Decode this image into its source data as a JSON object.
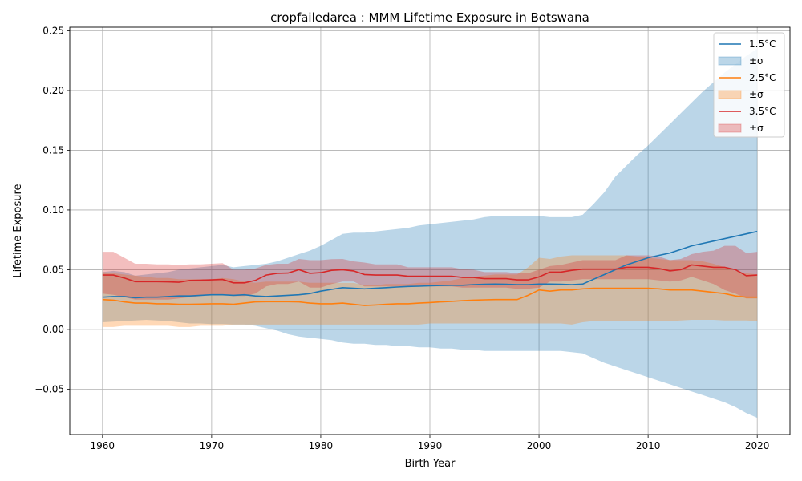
{
  "chart_data": {
    "type": "line",
    "title": "cropfailedarea : MMM Lifetime Exposure in Botswana",
    "xlabel": "Birth Year",
    "ylabel": "Lifetime Exposure",
    "xlim": [
      1957,
      2023
    ],
    "ylim": [
      -0.088,
      0.253
    ],
    "xticks": [
      1960,
      1970,
      1980,
      1990,
      2000,
      2010,
      2020
    ],
    "xtick_labels": [
      "1960",
      "1970",
      "1980",
      "1990",
      "2000",
      "2010",
      "2020"
    ],
    "yticks": [
      -0.05,
      0.0,
      0.05,
      0.1,
      0.15,
      0.2,
      0.25
    ],
    "ytick_labels": [
      "−0.05",
      "0.00",
      "0.05",
      "0.10",
      "0.15",
      "0.20",
      "0.25"
    ],
    "grid": true,
    "legend_position": "top-right",
    "x": [
      1960,
      1961,
      1962,
      1963,
      1964,
      1965,
      1966,
      1967,
      1968,
      1969,
      1970,
      1971,
      1972,
      1973,
      1974,
      1975,
      1976,
      1977,
      1978,
      1979,
      1980,
      1981,
      1982,
      1983,
      1984,
      1985,
      1986,
      1987,
      1988,
      1989,
      1990,
      1991,
      1992,
      1993,
      1994,
      1995,
      1996,
      1997,
      1998,
      1999,
      2000,
      2001,
      2002,
      2003,
      2004,
      2005,
      2006,
      2007,
      2008,
      2009,
      2010,
      2011,
      2012,
      2013,
      2014,
      2015,
      2016,
      2017,
      2018,
      2019,
      2020
    ],
    "series": [
      {
        "name": "1.5°C",
        "band_label": "±σ",
        "color": "#1f77b4",
        "band_color": "#1f77b4",
        "mean": [
          0.027,
          0.0275,
          0.0275,
          0.0265,
          0.027,
          0.027,
          0.0275,
          0.028,
          0.028,
          0.0285,
          0.029,
          0.029,
          0.0285,
          0.029,
          0.028,
          0.0275,
          0.028,
          0.0285,
          0.029,
          0.03,
          0.032,
          0.0335,
          0.035,
          0.0345,
          0.034,
          0.0345,
          0.035,
          0.0355,
          0.036,
          0.0362,
          0.0365,
          0.0368,
          0.037,
          0.037,
          0.0375,
          0.0378,
          0.038,
          0.0378,
          0.0375,
          0.0375,
          0.038,
          0.038,
          0.0378,
          0.0375,
          0.038,
          0.042,
          0.046,
          0.05,
          0.054,
          0.057,
          0.06,
          0.062,
          0.064,
          0.067,
          0.07,
          0.072,
          0.074,
          0.076,
          0.078,
          0.08,
          0.082
        ],
        "lower": [
          0.006,
          0.0065,
          0.007,
          0.0075,
          0.008,
          0.0075,
          0.007,
          0.006,
          0.005,
          0.005,
          0.0045,
          0.0045,
          0.004,
          0.004,
          0.003,
          0.001,
          -0.001,
          -0.004,
          -0.006,
          -0.007,
          -0.008,
          -0.009,
          -0.011,
          -0.012,
          -0.012,
          -0.013,
          -0.013,
          -0.014,
          -0.014,
          -0.015,
          -0.015,
          -0.016,
          -0.016,
          -0.017,
          -0.017,
          -0.018,
          -0.018,
          -0.018,
          -0.018,
          -0.018,
          -0.018,
          -0.018,
          -0.018,
          -0.019,
          -0.02,
          -0.024,
          -0.028,
          -0.031,
          -0.034,
          -0.037,
          -0.04,
          -0.043,
          -0.046,
          -0.049,
          -0.052,
          -0.055,
          -0.058,
          -0.061,
          -0.065,
          -0.07,
          -0.074
        ],
        "upper": [
          0.048,
          0.049,
          0.048,
          0.045,
          0.046,
          0.047,
          0.048,
          0.05,
          0.051,
          0.052,
          0.053,
          0.054,
          0.052,
          0.053,
          0.054,
          0.055,
          0.057,
          0.06,
          0.063,
          0.066,
          0.07,
          0.075,
          0.08,
          0.081,
          0.081,
          0.082,
          0.083,
          0.084,
          0.085,
          0.087,
          0.088,
          0.089,
          0.09,
          0.091,
          0.092,
          0.094,
          0.095,
          0.095,
          0.095,
          0.095,
          0.095,
          0.094,
          0.094,
          0.094,
          0.096,
          0.105,
          0.115,
          0.128,
          0.137,
          0.146,
          0.154,
          0.163,
          0.172,
          0.181,
          0.19,
          0.199,
          0.207,
          0.215,
          0.222,
          0.229,
          0.235
        ]
      },
      {
        "name": "2.5°C",
        "band_label": "±σ",
        "color": "#ff7f0e",
        "band_color": "#ff7f0e",
        "mean": [
          0.025,
          0.0245,
          0.023,
          0.022,
          0.022,
          0.0215,
          0.0215,
          0.021,
          0.021,
          0.0212,
          0.0215,
          0.0215,
          0.021,
          0.022,
          0.023,
          0.0232,
          0.0232,
          0.0232,
          0.023,
          0.022,
          0.0215,
          0.0215,
          0.022,
          0.021,
          0.02,
          0.0205,
          0.021,
          0.0215,
          0.0215,
          0.022,
          0.0225,
          0.023,
          0.0235,
          0.024,
          0.0245,
          0.0248,
          0.025,
          0.025,
          0.025,
          0.0285,
          0.033,
          0.032,
          0.033,
          0.033,
          0.034,
          0.0345,
          0.0345,
          0.0345,
          0.0345,
          0.0345,
          0.0345,
          0.034,
          0.033,
          0.033,
          0.033,
          0.032,
          0.031,
          0.03,
          0.028,
          0.027,
          0.027
        ],
        "lower": [
          0.002,
          0.002,
          0.003,
          0.003,
          0.003,
          0.003,
          0.003,
          0.002,
          0.002,
          0.003,
          0.003,
          0.003,
          0.004,
          0.004,
          0.004,
          0.004,
          0.004,
          0.004,
          0.004,
          0.004,
          0.004,
          0.004,
          0.004,
          0.004,
          0.004,
          0.004,
          0.004,
          0.004,
          0.004,
          0.004,
          0.005,
          0.005,
          0.005,
          0.005,
          0.005,
          0.005,
          0.005,
          0.005,
          0.005,
          0.005,
          0.005,
          0.005,
          0.005,
          0.004,
          0.006,
          0.007,
          0.007,
          0.007,
          0.007,
          0.007,
          0.007,
          0.007,
          0.007,
          0.0075,
          0.008,
          0.008,
          0.008,
          0.0075,
          0.0075,
          0.0075,
          0.007
        ],
        "upper": [
          0.048,
          0.047,
          0.046,
          0.045,
          0.044,
          0.043,
          0.043,
          0.042,
          0.042,
          0.042,
          0.042,
          0.043,
          0.042,
          0.04,
          0.039,
          0.04,
          0.04,
          0.04,
          0.04,
          0.039,
          0.039,
          0.039,
          0.039,
          0.039,
          0.037,
          0.037,
          0.038,
          0.038,
          0.038,
          0.039,
          0.039,
          0.04,
          0.041,
          0.043,
          0.044,
          0.045,
          0.046,
          0.046,
          0.046,
          0.052,
          0.06,
          0.059,
          0.061,
          0.062,
          0.062,
          0.062,
          0.062,
          0.062,
          0.062,
          0.061,
          0.06,
          0.059,
          0.058,
          0.058,
          0.058,
          0.057,
          0.055,
          0.052,
          0.049,
          0.047,
          0.046
        ]
      },
      {
        "name": "3.5°C",
        "band_label": "±σ",
        "color": "#d62728",
        "band_color": "#d62728",
        "mean": [
          0.0455,
          0.0455,
          0.043,
          0.04,
          0.04,
          0.04,
          0.0398,
          0.0395,
          0.041,
          0.0412,
          0.0415,
          0.0418,
          0.039,
          0.039,
          0.041,
          0.0455,
          0.047,
          0.0472,
          0.05,
          0.047,
          0.0475,
          0.0495,
          0.05,
          0.049,
          0.046,
          0.0455,
          0.0455,
          0.0455,
          0.0445,
          0.0445,
          0.0445,
          0.0445,
          0.0445,
          0.0435,
          0.0435,
          0.0425,
          0.0425,
          0.0425,
          0.0415,
          0.0415,
          0.044,
          0.048,
          0.048,
          0.0495,
          0.0505,
          0.0505,
          0.0505,
          0.0505,
          0.052,
          0.052,
          0.052,
          0.051,
          0.049,
          0.05,
          0.054,
          0.053,
          0.052,
          0.052,
          0.05,
          0.045,
          0.0455
        ],
        "lower": [
          0.03,
          0.029,
          0.027,
          0.025,
          0.025,
          0.025,
          0.025,
          0.026,
          0.027,
          0.028,
          0.029,
          0.029,
          0.028,
          0.028,
          0.03,
          0.036,
          0.038,
          0.038,
          0.04,
          0.035,
          0.035,
          0.038,
          0.04,
          0.04,
          0.036,
          0.036,
          0.036,
          0.036,
          0.036,
          0.036,
          0.036,
          0.036,
          0.036,
          0.035,
          0.035,
          0.035,
          0.035,
          0.035,
          0.034,
          0.034,
          0.035,
          0.04,
          0.04,
          0.041,
          0.042,
          0.042,
          0.042,
          0.042,
          0.042,
          0.042,
          0.042,
          0.041,
          0.04,
          0.041,
          0.044,
          0.041,
          0.038,
          0.033,
          0.03,
          0.026,
          0.026
        ],
        "upper": [
          0.065,
          0.065,
          0.06,
          0.055,
          0.055,
          0.0545,
          0.0545,
          0.054,
          0.0545,
          0.0545,
          0.055,
          0.0555,
          0.05,
          0.05,
          0.051,
          0.054,
          0.055,
          0.055,
          0.059,
          0.058,
          0.058,
          0.0588,
          0.059,
          0.057,
          0.056,
          0.0545,
          0.0545,
          0.0545,
          0.052,
          0.052,
          0.052,
          0.052,
          0.052,
          0.0505,
          0.05,
          0.048,
          0.048,
          0.048,
          0.047,
          0.047,
          0.05,
          0.053,
          0.054,
          0.056,
          0.058,
          0.058,
          0.058,
          0.058,
          0.062,
          0.062,
          0.062,
          0.061,
          0.058,
          0.059,
          0.063,
          0.065,
          0.066,
          0.07,
          0.07,
          0.064,
          0.065
        ]
      }
    ]
  }
}
